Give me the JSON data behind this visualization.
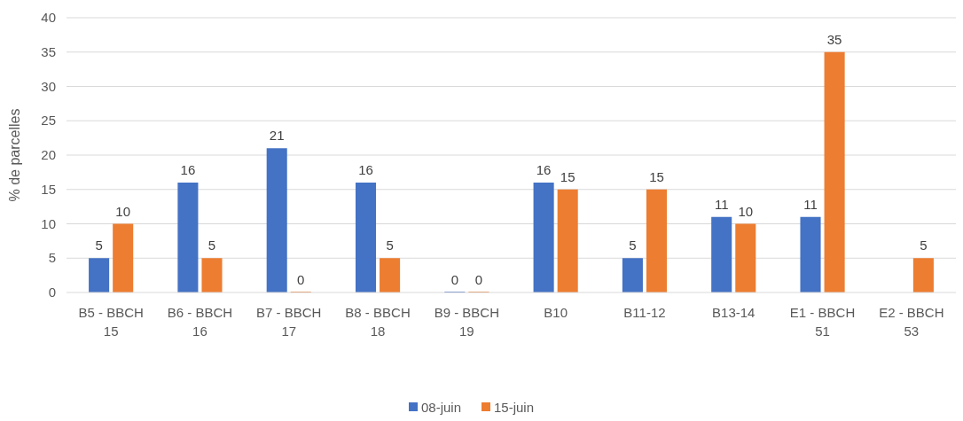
{
  "chart_data": {
    "type": "bar",
    "ylabel": "% de parcelles",
    "categories": [
      "B5 - BBCH 15",
      "B6 - BBCH 16",
      "B7 - BBCH 17",
      "B8 - BBCH 18",
      "B9 - BBCH 19",
      "B10",
      "B11-12",
      "B13-14",
      "E1 - BBCH 51",
      "E2 - BBCH 53"
    ],
    "series": [
      {
        "name": "08-juin",
        "color": "#4472c4",
        "values": [
          5,
          16,
          21,
          16,
          0,
          16,
          5,
          11,
          11,
          null
        ]
      },
      {
        "name": "15-juin",
        "color": "#ed7d31",
        "values": [
          10,
          5,
          0,
          5,
          0,
          15,
          15,
          10,
          35,
          5
        ]
      }
    ],
    "ylim": [
      0,
      40
    ],
    "yticks": [
      0,
      5,
      10,
      15,
      20,
      25,
      30,
      35,
      40
    ],
    "grid": "y",
    "legend": "bottom",
    "data_labels": true
  }
}
